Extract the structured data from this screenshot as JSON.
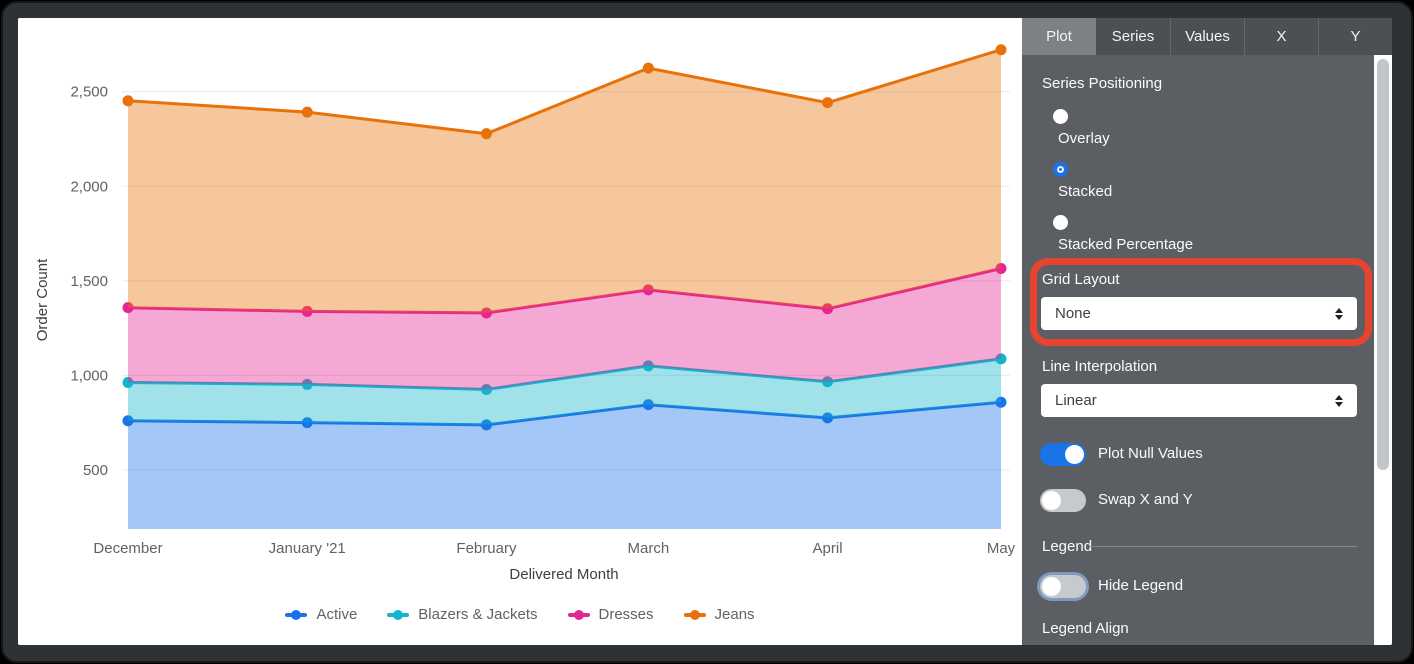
{
  "theme": {
    "accent": "#1A73E8",
    "highlight_red": "#E8432F",
    "panel_bg": "#5B5F64",
    "tabbar_bg": "#4C5054",
    "active_tab_bg": "#7C8185",
    "grid_color": "#E8EAED",
    "axis_text_color": "#5F6368",
    "axis_title_color": "#3C4043"
  },
  "chart_data": {
    "type": "area",
    "stacked": true,
    "positioning": "stacked",
    "xlabel": "Delivered Month",
    "ylabel": "Order Count",
    "categories": [
      "December",
      "January '21",
      "February",
      "March",
      "April",
      "May"
    ],
    "x_days": [
      0,
      31,
      62,
      90,
      121,
      151
    ],
    "y_ticks": [
      {
        "value": 500,
        "label": "500"
      },
      {
        "value": 1000,
        "label": "1,000"
      },
      {
        "value": 1500,
        "label": "1,500"
      },
      {
        "value": 2000,
        "label": "2,000"
      },
      {
        "value": 2500,
        "label": "2,500"
      }
    ],
    "grid": true,
    "legend_position": "bottom",
    "series": [
      {
        "name": "Active",
        "color": "#1A73E8",
        "fill": "rgba(26,115,232,0.40)",
        "values": [
          760,
          750,
          738,
          845,
          775,
          858
        ],
        "stacked_top": [
          760,
          750,
          738,
          845,
          775,
          858
        ]
      },
      {
        "name": "Blazers & Jackets",
        "color": "#12B5CB",
        "fill": "rgba(18,181,203,0.40)",
        "values": [
          202,
          202,
          187,
          205,
          191,
          229
        ],
        "stacked_top": [
          962,
          952,
          925,
          1050,
          966,
          1087
        ]
      },
      {
        "name": "Dresses",
        "color": "#E52592",
        "fill": "rgba(229,37,146,0.40)",
        "values": [
          396,
          386,
          405,
          402,
          386,
          478
        ],
        "stacked_top": [
          1358,
          1338,
          1330,
          1452,
          1352,
          1565
        ]
      },
      {
        "name": "Jeans",
        "color": "#E8710A",
        "fill": "rgba(232,113,10,0.40)",
        "values": [
          1094,
          1054,
          948,
          1173,
          1090,
          1157
        ],
        "stacked_top": [
          2452,
          2392,
          2278,
          2625,
          2442,
          2722
        ]
      }
    ]
  },
  "panel": {
    "tabs": [
      {
        "label": "Plot",
        "active": true
      },
      {
        "label": "Series",
        "active": false
      },
      {
        "label": "Values",
        "active": false
      },
      {
        "label": "X",
        "active": false
      },
      {
        "label": "Y",
        "active": false
      }
    ],
    "series_positioning": {
      "label": "Series Positioning",
      "options": [
        {
          "label": "Overlay",
          "selected": false
        },
        {
          "label": "Stacked",
          "selected": true
        },
        {
          "label": "Stacked Percentage",
          "selected": false
        }
      ]
    },
    "grid_layout": {
      "label": "Grid Layout",
      "value": "None",
      "highlighted": true
    },
    "line_interpolation": {
      "label": "Line Interpolation",
      "value": "Linear"
    },
    "toggles": [
      {
        "label": "Plot Null Values",
        "on": true
      },
      {
        "label": "Swap X and Y",
        "on": false
      }
    ],
    "legend_section": {
      "header": "Legend",
      "hide_legend": {
        "label": "Hide Legend",
        "on": false
      },
      "legend_align_label": "Legend Align"
    }
  }
}
